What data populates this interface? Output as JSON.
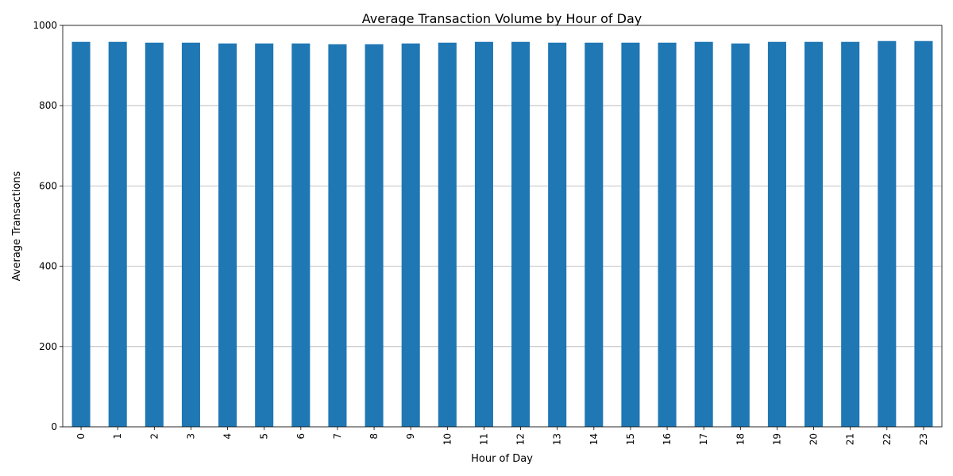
{
  "chart_data": {
    "type": "bar",
    "title": "Average Transaction Volume by Hour of Day",
    "xlabel": "Hour of Day",
    "ylabel": "Average Transactions",
    "categories": [
      "0",
      "1",
      "2",
      "3",
      "4",
      "5",
      "6",
      "7",
      "8",
      "9",
      "10",
      "11",
      "12",
      "13",
      "14",
      "15",
      "16",
      "17",
      "18",
      "19",
      "20",
      "21",
      "22",
      "23"
    ],
    "values": [
      959,
      959,
      957,
      957,
      955,
      955,
      955,
      953,
      953,
      955,
      957,
      959,
      959,
      957,
      957,
      957,
      957,
      959,
      955,
      959,
      959,
      959,
      961,
      961
    ],
    "ylim": [
      0,
      1000
    ],
    "yticks": [
      0,
      200,
      400,
      600,
      800,
      1000
    ],
    "grid": "y",
    "bar_color": "#1f77b4",
    "xtick_rotation": 90
  }
}
